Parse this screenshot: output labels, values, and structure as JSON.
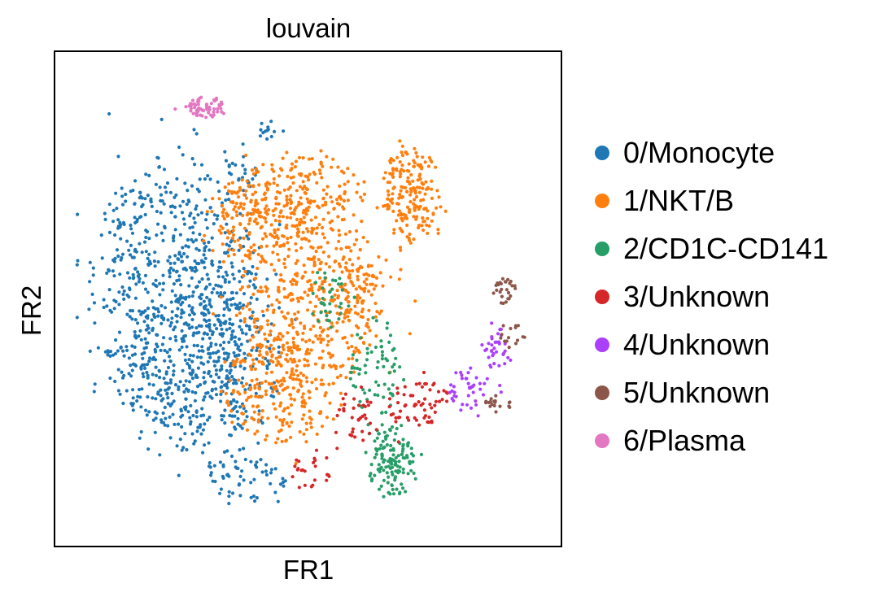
{
  "chart_data": {
    "type": "scatter",
    "title": "louvain",
    "xlabel": "FR1",
    "ylabel": "FR2",
    "xlim": [
      0,
      100
    ],
    "ylim": [
      0,
      100
    ],
    "grid": false,
    "ticks": "none",
    "legend_placement": "right-outside",
    "series": [
      {
        "name": "0/Monocyte",
        "color": "#1f77b4",
        "count": 1150,
        "regions": [
          {
            "cx": 21,
            "cy": 52,
            "rx": 18,
            "ry": 30,
            "weight": 0.62
          },
          {
            "cx": 26,
            "cy": 33,
            "rx": 14,
            "ry": 18,
            "weight": 0.22
          },
          {
            "cx": 37,
            "cy": 36,
            "rx": 8,
            "ry": 16,
            "weight": 0.08
          },
          {
            "cx": 37,
            "cy": 11,
            "rx": 9,
            "ry": 5,
            "weight": 0.05
          },
          {
            "cx": 36,
            "cy": 78,
            "rx": 4,
            "ry": 6,
            "weight": 0.02
          },
          {
            "cx": 41,
            "cy": 87,
            "rx": 2,
            "ry": 2,
            "weight": 0.01
          }
        ]
      },
      {
        "name": "1/NKT/B",
        "color": "#ff7f0e",
        "count": 1250,
        "regions": [
          {
            "cx": 50,
            "cy": 50,
            "rx": 15,
            "ry": 18,
            "weight": 0.33
          },
          {
            "cx": 45,
            "cy": 30,
            "rx": 13,
            "ry": 12,
            "weight": 0.2
          },
          {
            "cx": 48,
            "cy": 72,
            "rx": 14,
            "ry": 9,
            "weight": 0.2
          },
          {
            "cx": 72,
            "cy": 73,
            "rx": 6,
            "ry": 11,
            "weight": 0.15
          },
          {
            "cx": 34,
            "cy": 67,
            "rx": 6,
            "ry": 10,
            "weight": 0.07
          },
          {
            "cx": 62,
            "cy": 52,
            "rx": 6,
            "ry": 12,
            "weight": 0.05
          }
        ]
      },
      {
        "name": "2/CD1C-CD141",
        "color": "#279e68",
        "count": 240,
        "regions": [
          {
            "cx": 68,
            "cy": 14,
            "rx": 5,
            "ry": 8,
            "weight": 0.55
          },
          {
            "cx": 64,
            "cy": 34,
            "rx": 5,
            "ry": 12,
            "weight": 0.3
          },
          {
            "cx": 55,
            "cy": 50,
            "rx": 5,
            "ry": 7,
            "weight": 0.15
          }
        ]
      },
      {
        "name": "3/Unknown",
        "color": "#d62728",
        "count": 120,
        "regions": [
          {
            "cx": 74,
            "cy": 27,
            "rx": 7,
            "ry": 5,
            "weight": 0.5
          },
          {
            "cx": 61,
            "cy": 24,
            "rx": 6,
            "ry": 7,
            "weight": 0.3
          },
          {
            "cx": 51,
            "cy": 12,
            "rx": 5,
            "ry": 4,
            "weight": 0.2
          }
        ]
      },
      {
        "name": "4/Unknown",
        "color": "#aa40fc",
        "count": 75,
        "regions": [
          {
            "cx": 86,
            "cy": 30,
            "rx": 6,
            "ry": 5,
            "weight": 0.55
          },
          {
            "cx": 91,
            "cy": 39,
            "rx": 3,
            "ry": 6,
            "weight": 0.45
          }
        ]
      },
      {
        "name": "5/Unknown",
        "color": "#8c564b",
        "count": 60,
        "regions": [
          {
            "cx": 92,
            "cy": 52,
            "rx": 2.5,
            "ry": 3,
            "weight": 0.45
          },
          {
            "cx": 94,
            "cy": 42,
            "rx": 3,
            "ry": 3,
            "weight": 0.25
          },
          {
            "cx": 91,
            "cy": 27,
            "rx": 3,
            "ry": 2.5,
            "weight": 0.3
          }
        ]
      },
      {
        "name": "6/Plasma",
        "color": "#e377c2",
        "count": 60,
        "regions": [
          {
            "cx": 28,
            "cy": 92,
            "rx": 4,
            "ry": 2.3,
            "weight": 1.0
          }
        ]
      }
    ]
  }
}
